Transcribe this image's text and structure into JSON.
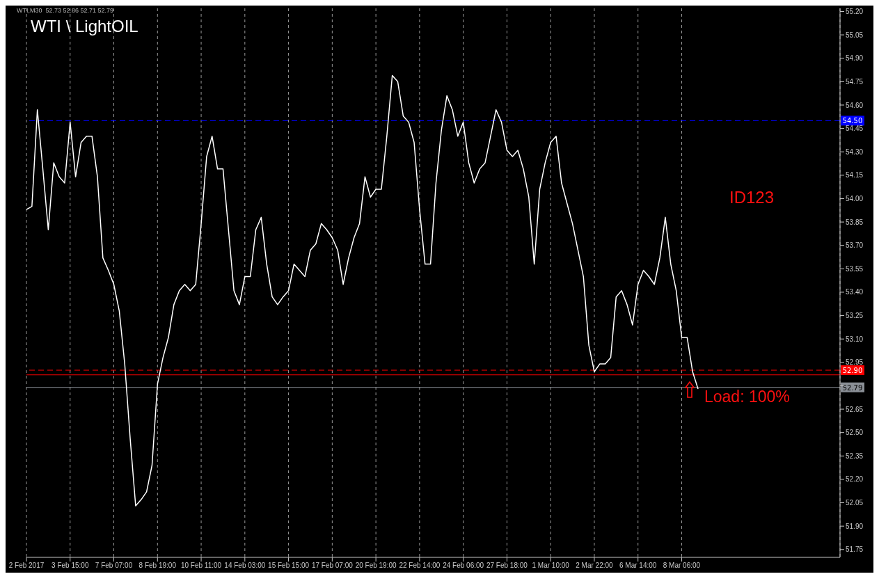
{
  "chart_data": {
    "type": "line",
    "title": "WTI \\ LightOIL",
    "categories": [
      "2 Feb 2017",
      null,
      null,
      null,
      null,
      null,
      null,
      null,
      "3 Feb 15:00",
      null,
      null,
      null,
      null,
      null,
      null,
      null,
      "7 Feb 07:00",
      null,
      null,
      null,
      null,
      null,
      null,
      null,
      "8 Feb 19:00",
      null,
      null,
      null,
      null,
      null,
      null,
      null,
      "10 Feb 11:00",
      null,
      null,
      null,
      null,
      null,
      null,
      null,
      "14 Feb 03:00",
      null,
      null,
      null,
      null,
      null,
      null,
      null,
      "15 Feb 15:00",
      null,
      null,
      null,
      null,
      null,
      null,
      null,
      "17 Feb 07:00",
      null,
      null,
      null,
      null,
      null,
      null,
      null,
      "20 Feb 19:00",
      null,
      null,
      null,
      null,
      null,
      null,
      null,
      "22 Feb 14:00",
      null,
      null,
      null,
      null,
      null,
      null,
      null,
      "24 Feb 06:00",
      null,
      null,
      null,
      null,
      null,
      null,
      null,
      "27 Feb 18:00",
      null,
      null,
      null,
      null,
      null,
      null,
      null,
      "1 Mar 10:00",
      null,
      null,
      null,
      null,
      null,
      null,
      null,
      "2 Mar 22:00",
      null,
      null,
      null,
      null,
      null,
      null,
      null,
      "6 Mar 14:00",
      null,
      null,
      null,
      null,
      null,
      null,
      null,
      "8 Mar 06:00",
      null,
      null,
      null,
      null,
      null,
      null,
      null,
      null,
      null,
      null,
      null,
      null,
      null,
      null,
      null,
      null,
      null,
      null,
      null,
      null,
      null,
      null,
      null,
      null,
      null,
      null,
      null,
      null,
      null
    ],
    "series": [
      {
        "color": "#ffffff",
        "values": [
          53.93,
          53.95,
          54.57,
          54.19,
          53.8,
          54.23,
          54.14,
          54.1,
          54.49,
          54.14,
          54.36,
          54.4,
          54.4,
          54.14,
          53.62,
          53.54,
          53.45,
          53.28,
          52.94,
          52.46,
          52.03,
          52.07,
          52.12,
          52.29,
          52.81,
          52.98,
          53.11,
          53.32,
          53.41,
          53.45,
          53.41,
          53.45,
          53.84,
          54.27,
          54.4,
          54.19,
          54.19,
          53.8,
          53.41,
          53.32,
          53.5,
          53.5,
          53.8,
          53.88,
          53.58,
          53.37,
          53.32,
          53.37,
          53.41,
          53.58,
          53.54,
          53.5,
          53.67,
          53.71,
          53.84,
          53.8,
          53.75,
          53.67,
          53.45,
          53.62,
          53.75,
          53.84,
          54.14,
          54.01,
          54.06,
          54.06,
          54.4,
          54.79,
          54.75,
          54.53,
          54.49,
          54.36,
          53.93,
          53.58,
          53.58,
          54.1,
          54.44,
          54.66,
          54.57,
          54.4,
          54.49,
          54.23,
          54.1,
          54.19,
          54.23,
          54.4,
          54.57,
          54.49,
          54.31,
          54.27,
          54.31,
          54.19,
          54.01,
          53.58,
          54.06,
          54.23,
          54.36,
          54.4,
          54.1,
          53.97,
          53.84,
          53.67,
          53.5,
          53.06,
          52.89,
          52.94,
          52.94,
          52.98,
          53.37,
          53.41,
          53.32,
          53.19,
          53.45,
          53.54,
          53.5,
          53.45,
          53.62,
          53.88,
          53.58,
          53.41,
          53.11,
          53.11,
          52.89,
          52.78,
          null,
          null,
          null,
          null,
          null,
          null,
          null,
          null,
          null,
          null,
          null,
          null,
          null,
          null,
          null,
          null,
          null,
          null,
          null,
          null,
          null,
          null,
          null,
          null,
          null,
          null
        ]
      }
    ],
    "ylim": [
      51.7,
      55.22
    ],
    "yticks": [
      51.75,
      {
        "value": 51.9,
        "label": "51.90"
      },
      52.05,
      {
        "value": 52.2,
        "label": "52.20"
      },
      52.35,
      {
        "value": 52.5,
        "label": "52.50"
      },
      52.65,
      {
        "value": 52.8,
        "label": null
      },
      52.95,
      {
        "value": 53.1,
        "label": "53.10"
      },
      53.25,
      {
        "value": 53.4,
        "label": "53.40"
      },
      53.55,
      {
        "value": 53.7,
        "label": "53.70"
      },
      53.85,
      {
        "value": 54.0,
        "label": "54.00"
      },
      54.15,
      {
        "value": 54.3,
        "label": "54.30"
      },
      54.45,
      {
        "value": 54.6,
        "label": "54.60"
      },
      54.75,
      {
        "value": 54.9,
        "label": "54.90"
      },
      55.05,
      {
        "value": 55.2,
        "label": "55.20"
      }
    ],
    "grid": "x",
    "marker": "none",
    "line_style": "solid",
    "ref_lines": [
      {
        "axis": "y",
        "value": 54.5,
        "label": "54.50",
        "color": "#0000ff",
        "line_style": "dashed"
      },
      {
        "axis": "y",
        "value": 52.87,
        "label": null,
        "color": "#ff0000",
        "line_style": "solid"
      },
      {
        "axis": "y",
        "value": 52.9,
        "label": "52.90",
        "color": "#ff0000",
        "line_style": "dashed"
      },
      {
        "axis": "y",
        "value": 52.79,
        "label": "52.79",
        "color": "#8a8f96",
        "line_style": "solid"
      }
    ],
    "annotations": [
      "WTI,M30  52.73 52.86 52.71 52.79",
      "ID123",
      "Load: 100%"
    ]
  }
}
